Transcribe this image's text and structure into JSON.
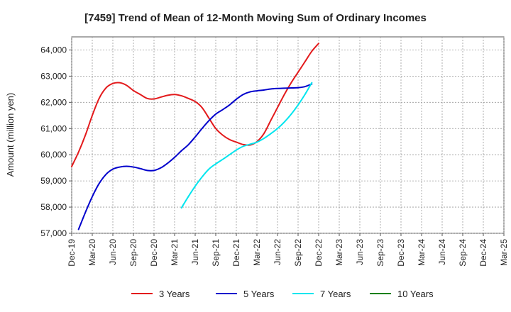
{
  "chart_data": {
    "type": "line",
    "title": "[7459]  Trend of Mean of 12-Month Moving Sum of Ordinary Incomes",
    "ylabel": "Amount (million yen)",
    "xlabel": "",
    "ylim": [
      57000,
      64500
    ],
    "yticks": [
      57000,
      58000,
      59000,
      60000,
      61000,
      62000,
      63000,
      64000
    ],
    "ytick_labels": [
      "57,000",
      "58,000",
      "59,000",
      "60,000",
      "61,000",
      "62,000",
      "63,000",
      "64,000"
    ],
    "xticks": [
      "Dec-19",
      "Mar-20",
      "Jun-20",
      "Sep-20",
      "Dec-20",
      "Mar-21",
      "Jun-21",
      "Sep-21",
      "Dec-21",
      "Mar-22",
      "Jun-22",
      "Sep-22",
      "Dec-22",
      "Mar-23",
      "Jun-23",
      "Sep-23",
      "Dec-23",
      "Mar-24",
      "Jun-24",
      "Sep-24",
      "Dec-24",
      "Mar-25"
    ],
    "grid": true,
    "legend_position": "bottom",
    "series": [
      {
        "name": "3 Years",
        "color": "#e31a1c",
        "start_index": 0,
        "values": [
          59550,
          60100,
          60750,
          61500,
          62150,
          62550,
          62720,
          62750,
          62650,
          62450,
          62300,
          62150,
          62130,
          62200,
          62270,
          62300,
          62250,
          62150,
          62030,
          61800,
          61400,
          61000,
          60750,
          60580,
          60480,
          60390,
          60370,
          60500,
          60800,
          61300,
          61800,
          62300,
          62750,
          63150,
          63550,
          63950,
          64250
        ]
      },
      {
        "name": "5 Years",
        "color": "#0000cc",
        "start_index": 1,
        "values": [
          57150,
          57800,
          58400,
          58900,
          59250,
          59450,
          59530,
          59560,
          59530,
          59470,
          59400,
          59400,
          59500,
          59680,
          59900,
          60150,
          60380,
          60680,
          61000,
          61300,
          61550,
          61720,
          61900,
          62120,
          62300,
          62400,
          62440,
          62470,
          62510,
          62530,
          62540,
          62550,
          62560,
          62600,
          62700
        ]
      },
      {
        "name": "7 Years",
        "color": "#00e5ee",
        "start_index": 16,
        "values": [
          57970,
          58400,
          58800,
          59150,
          59450,
          59650,
          59820,
          60000,
          60180,
          60320,
          60400,
          60480,
          60620,
          60800,
          61000,
          61250,
          61550,
          61900,
          62300,
          62750
        ]
      },
      {
        "name": "10 Years",
        "color": "#008000",
        "start_index": 0,
        "values": []
      }
    ]
  }
}
